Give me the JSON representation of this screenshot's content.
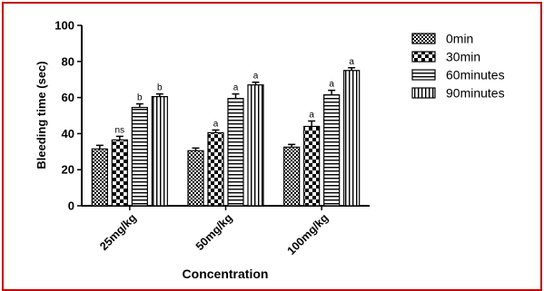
{
  "chart_data": {
    "type": "bar",
    "title": "",
    "xlabel": "Concentration",
    "ylabel": "Bleeding time (sec)",
    "ylim": [
      0,
      100
    ],
    "yticks": [
      0,
      20,
      40,
      60,
      80,
      100
    ],
    "categories": [
      "25mg/kg",
      "50mg/kg",
      "100mg/kg"
    ],
    "legend_position": "top-right",
    "grid": false,
    "series": [
      {
        "name": "0min",
        "values": [
          31.5,
          30.5,
          32.5
        ],
        "errors": [
          2.0,
          1.5,
          1.5
        ],
        "annotations": [
          "",
          "",
          ""
        ],
        "pattern": "dense-checker"
      },
      {
        "name": "30min",
        "values": [
          36.5,
          40.5,
          44.0
        ],
        "errors": [
          2.0,
          1.5,
          3.0
        ],
        "annotations": [
          "ns",
          "a",
          "a"
        ],
        "pattern": "large-checker"
      },
      {
        "name": "60minutes",
        "values": [
          54.5,
          59.5,
          61.5
        ],
        "errors": [
          2.0,
          2.5,
          2.5
        ],
        "annotations": [
          "b",
          "a",
          "a"
        ],
        "pattern": "horizontal-lines"
      },
      {
        "name": "90minutes",
        "values": [
          60.5,
          67.0,
          75.0
        ],
        "errors": [
          1.5,
          1.5,
          1.5
        ],
        "annotations": [
          "b",
          "a",
          "a"
        ],
        "pattern": "vertical-lines"
      }
    ]
  },
  "colors": {
    "frame_border": "#c00000",
    "ink": "#000000",
    "background": "#ffffff"
  }
}
